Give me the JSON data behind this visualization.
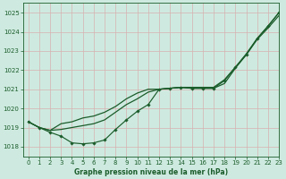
{
  "background_color": "#ceeae0",
  "grid_color": "#b8d8cc",
  "line_color": "#1a5c2a",
  "xlabel": "Graphe pression niveau de la mer (hPa)",
  "ylim": [
    1017.5,
    1025.5
  ],
  "xlim": [
    -0.5,
    23
  ],
  "yticks": [
    1018,
    1019,
    1020,
    1021,
    1022,
    1023,
    1024,
    1025
  ],
  "xticks": [
    0,
    1,
    2,
    3,
    4,
    5,
    6,
    7,
    8,
    9,
    10,
    11,
    12,
    13,
    14,
    15,
    16,
    17,
    18,
    19,
    20,
    21,
    22,
    23
  ],
  "series_upper": [
    1019.3,
    1019.0,
    1018.85,
    1019.2,
    1019.3,
    1019.5,
    1019.6,
    1019.8,
    1020.1,
    1020.5,
    1020.8,
    1021.0,
    1021.0,
    1021.05,
    1021.1,
    1021.1,
    1021.1,
    1021.1,
    1021.5,
    1022.15,
    1022.85,
    1023.65,
    1024.3,
    1025.0
  ],
  "series_middle": [
    1019.3,
    1019.0,
    1018.85,
    1018.9,
    1019.0,
    1019.1,
    1019.2,
    1019.4,
    1019.8,
    1020.2,
    1020.5,
    1020.85,
    1021.0,
    1021.05,
    1021.1,
    1021.05,
    1021.05,
    1021.05,
    1021.3,
    1022.1,
    1022.8,
    1023.6,
    1024.2,
    1024.85
  ],
  "series_marker_x": [
    0,
    1,
    2,
    3,
    4,
    5,
    6,
    7,
    8,
    9,
    10,
    11,
    12,
    13,
    14,
    15,
    16,
    17,
    18,
    19,
    20,
    21,
    22,
    23
  ],
  "series_marker": [
    1019.3,
    1019.0,
    1018.75,
    1018.55,
    1018.2,
    1018.15,
    1018.2,
    1018.35,
    1018.9,
    1019.4,
    1019.85,
    1020.2,
    1021.0,
    1021.05,
    1021.1,
    1021.05,
    1021.05,
    1021.05,
    1021.45,
    1022.15,
    1022.8,
    1023.65,
    1024.3,
    1025.0
  ]
}
